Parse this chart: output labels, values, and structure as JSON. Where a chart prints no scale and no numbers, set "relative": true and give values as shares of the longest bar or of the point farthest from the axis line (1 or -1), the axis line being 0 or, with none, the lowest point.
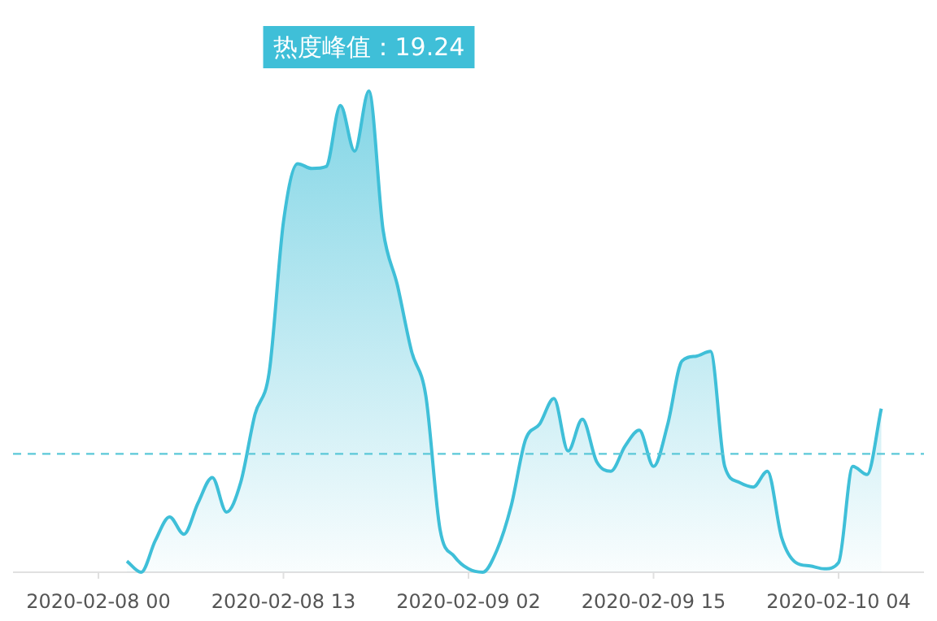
{
  "chart_data": {
    "type": "area",
    "relative": true,
    "x": [
      "2020-02-08T02:00",
      "2020-02-08T03:00",
      "2020-02-08T04:00",
      "2020-02-08T05:00",
      "2020-02-08T06:00",
      "2020-02-08T07:00",
      "2020-02-08T08:00",
      "2020-02-08T09:00",
      "2020-02-08T10:00",
      "2020-02-08T11:00",
      "2020-02-08T12:00",
      "2020-02-08T13:00",
      "2020-02-08T14:00",
      "2020-02-08T15:00",
      "2020-02-08T16:00",
      "2020-02-08T17:00",
      "2020-02-08T18:00",
      "2020-02-08T19:00",
      "2020-02-08T20:00",
      "2020-02-08T21:00",
      "2020-02-08T22:00",
      "2020-02-08T23:00",
      "2020-02-09T00:00",
      "2020-02-09T01:00",
      "2020-02-09T02:00",
      "2020-02-09T03:00",
      "2020-02-09T04:00",
      "2020-02-09T05:00",
      "2020-02-09T06:00",
      "2020-02-09T07:00",
      "2020-02-09T08:00",
      "2020-02-09T09:00",
      "2020-02-09T10:00",
      "2020-02-09T11:00",
      "2020-02-09T12:00",
      "2020-02-09T13:00",
      "2020-02-09T14:00",
      "2020-02-09T15:00",
      "2020-02-09T16:00",
      "2020-02-09T17:00",
      "2020-02-09T18:00",
      "2020-02-09T19:00",
      "2020-02-09T20:00",
      "2020-02-09T21:00",
      "2020-02-09T22:00",
      "2020-02-09T23:00",
      "2020-02-10T00:00",
      "2020-02-10T01:00",
      "2020-02-10T02:00",
      "2020-02-10T03:00",
      "2020-02-10T04:00",
      "2020-02-10T05:00",
      "2020-02-10T06:00",
      "2020-02-10T07:00"
    ],
    "series": [
      {
        "color": "#3fbfd8",
        "values": [
          0.023,
          0,
          0.066,
          0.115,
          0.079,
          0.144,
          0.197,
          0.125,
          0.187,
          0.328,
          0.416,
          0.728,
          0.849,
          0.839,
          0.843,
          0.97,
          0.875,
          1,
          0.711,
          0.597,
          0.459,
          0.367,
          0.089,
          0.033,
          0.007,
          0,
          0.046,
          0.138,
          0.275,
          0.308,
          0.361,
          0.252,
          0.318,
          0.23,
          0.21,
          0.262,
          0.295,
          0.22,
          0.308,
          0.439,
          0.449,
          0.459,
          0.22,
          0.187,
          0.177,
          0.21,
          0.072,
          0.02,
          0.013,
          0.007,
          0.02,
          0.22,
          0.203,
          0.34
        ]
      }
    ],
    "xlim": [
      "2020-02-07T18:00",
      "2020-02-10T10:00"
    ],
    "xticks": [
      {
        "value": "2020-02-08T00:00",
        "label": "2020-02-08 00"
      },
      {
        "value": "2020-02-08T13:00",
        "label": "2020-02-08 13"
      },
      {
        "value": "2020-02-09T02:00",
        "label": "2020-02-09 02"
      },
      {
        "value": "2020-02-09T15:00",
        "label": "2020-02-09 15"
      },
      {
        "value": "2020-02-10T04:00",
        "label": "2020-02-10 04"
      }
    ],
    "ref_lines": [
      {
        "axis": "y",
        "value": 0.246,
        "color": "#5bc8d8",
        "line_style": "dashed"
      }
    ],
    "annotations": [
      {
        "text": "热度峰值：19.24",
        "x": "2020-02-08T19:00",
        "y": 1
      }
    ]
  }
}
